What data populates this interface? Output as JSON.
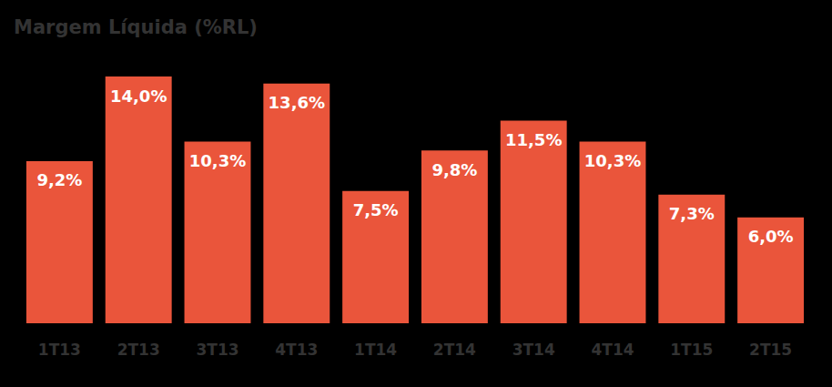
{
  "chart_data": {
    "type": "bar",
    "title": "Margem Líquida (%RL)",
    "categories": [
      "1T13",
      "2T13",
      "3T13",
      "4T13",
      "1T14",
      "2T14",
      "3T14",
      "4T14",
      "1T15",
      "2T15"
    ],
    "values": [
      9.2,
      14.0,
      10.3,
      13.6,
      7.5,
      9.8,
      11.5,
      10.3,
      7.3,
      6.0
    ],
    "value_labels": [
      "9,2%",
      "14,0%",
      "10,3%",
      "13,6%",
      "7,5%",
      "9,8%",
      "11,5%",
      "10,3%",
      "7,3%",
      "6,0%"
    ],
    "color": "#EA553B",
    "ylim": [
      0,
      14
    ],
    "data_labels": true,
    "tick_labels": "x",
    "grid": false
  }
}
